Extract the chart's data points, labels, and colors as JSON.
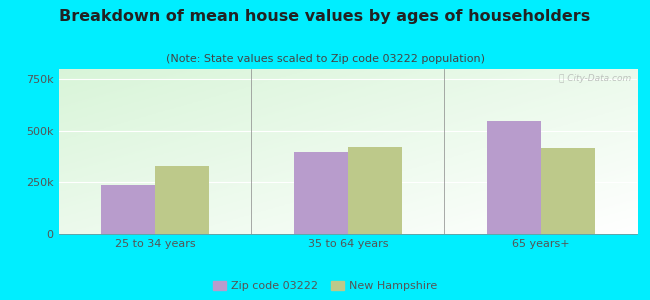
{
  "title": "Breakdown of mean house values by ages of householders",
  "subtitle": "(Note: State values scaled to Zip code 03222 population)",
  "categories": [
    "25 to 34 years",
    "35 to 64 years",
    "65 years+"
  ],
  "zip_values": [
    240000,
    400000,
    550000
  ],
  "state_values": [
    330000,
    420000,
    415000
  ],
  "zip_color": "#b89ccc",
  "state_color": "#bdc98a",
  "background_outer": "#00eeff",
  "ylim": [
    0,
    800000
  ],
  "yticks": [
    0,
    250000,
    500000,
    750000
  ],
  "ytick_labels": [
    "0",
    "250k",
    "500k",
    "750k"
  ],
  "legend_zip_label": "Zip code 03222",
  "legend_state_label": "New Hampshire",
  "bar_width": 0.28,
  "title_fontsize": 11.5,
  "subtitle_fontsize": 8,
  "tick_fontsize": 8,
  "legend_fontsize": 8,
  "title_color": "#222222",
  "subtitle_color": "#444444",
  "tick_color": "#555555"
}
